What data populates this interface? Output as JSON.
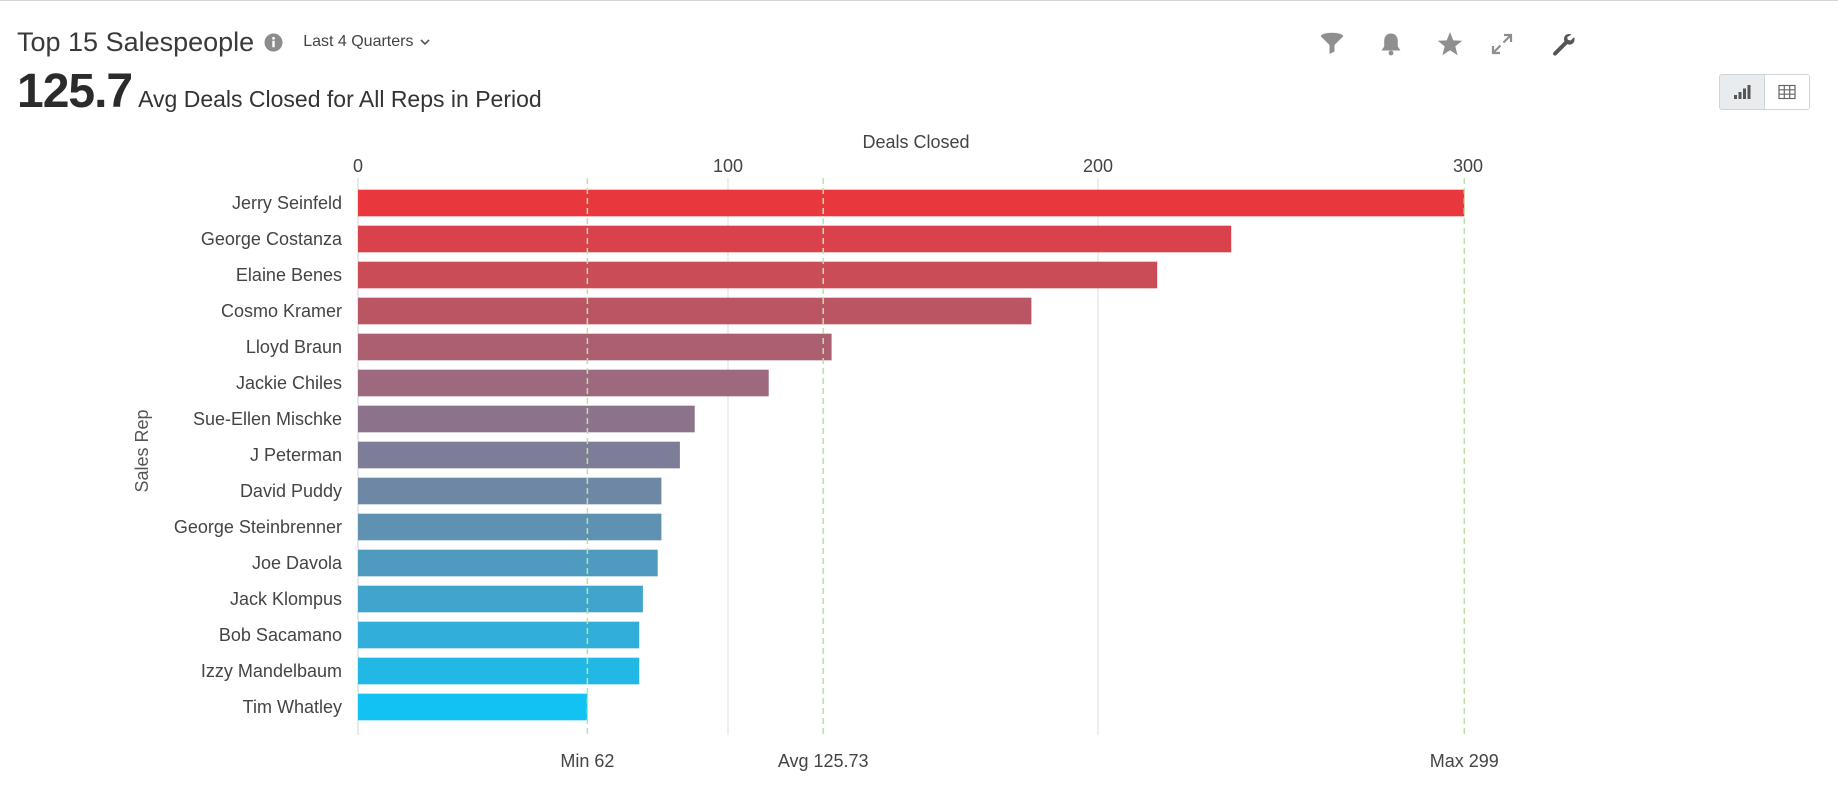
{
  "header": {
    "title": "Top 15 Salespeople",
    "period_selector": "Last 4 Quarters",
    "metric_value": "125.7",
    "metric_label": "Avg Deals Closed for All Reps in Period"
  },
  "toolbar": {
    "icons": [
      "filter-icon",
      "bell-icon",
      "star-icon",
      "expand-icon",
      "wrench-icon"
    ],
    "view_toggle": [
      "bar-chart-icon",
      "table-icon"
    ],
    "active_view": "bar-chart-icon"
  },
  "colors": {
    "gradient_top": "#e8383d",
    "gradient_bottom": "#12c2f3",
    "reference_line": "#b8e2a8"
  },
  "chart_data": {
    "type": "bar",
    "orientation": "horizontal",
    "xlabel": "Deals Closed",
    "ylabel": "Sales Rep",
    "xlim": [
      0,
      300
    ],
    "xticks": [
      "0",
      "100",
      "200",
      "300"
    ],
    "xtick_values": [
      0,
      100,
      200,
      300
    ],
    "categories": [
      "Jerry Seinfeld",
      "George Costanza",
      "Elaine Benes",
      "Cosmo Kramer",
      "Lloyd Braun",
      "Jackie Chiles",
      "Sue-Ellen Mischke",
      "J Peterman",
      "David Puddy",
      "George Steinbrenner",
      "Joe Davola",
      "Jack Klompus",
      "Bob Sacamano",
      "Izzy Mandelbaum",
      "Tim Whatley"
    ],
    "values": [
      299,
      236,
      216,
      182,
      128,
      111,
      91,
      87,
      82,
      82,
      81,
      77,
      76,
      76,
      62
    ],
    "reference_lines": [
      {
        "label": "Min 62",
        "value": 62
      },
      {
        "label": "Avg 125.73",
        "value": 125.73
      },
      {
        "label": "Max 299",
        "value": 299
      }
    ],
    "grid": true,
    "legend": "none"
  }
}
